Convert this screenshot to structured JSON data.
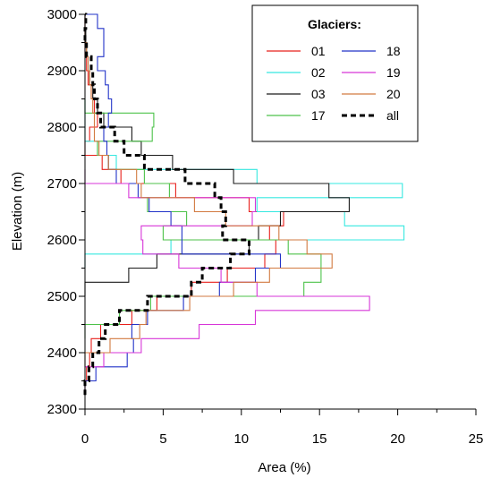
{
  "chart_data": {
    "type": "line",
    "xlabel": "Area (%)",
    "ylabel": "Elevation (m)",
    "xlim": [
      0,
      25
    ],
    "ylim": [
      2300,
      3000
    ],
    "x_ticks": [
      0,
      5,
      10,
      15,
      20,
      25
    ],
    "x_tick_labels": [
      "0",
      "5",
      "10",
      "15",
      "20",
      "25"
    ],
    "y_ticks": [
      2300,
      2400,
      2500,
      2600,
      2700,
      2800,
      2900,
      3000
    ],
    "y_tick_labels": [
      "2300",
      "2400",
      "2500",
      "2600",
      "2700",
      "2800",
      "2900",
      "3000"
    ],
    "grid": false,
    "legend_position": "top-right",
    "legend_title": "Glaciers:",
    "series": [
      {
        "name": "01",
        "color": "#e8201c",
        "dash": "solid",
        "bins": [
          [
            2325,
            2350,
            0.0
          ],
          [
            2350,
            2375,
            0.1
          ],
          [
            2375,
            2400,
            0.3
          ],
          [
            2400,
            2425,
            0.4
          ],
          [
            2425,
            2450,
            1.0
          ],
          [
            2450,
            2475,
            3.0
          ],
          [
            2475,
            2500,
            4.6
          ],
          [
            2500,
            2525,
            6.8
          ],
          [
            2525,
            2550,
            9.1
          ],
          [
            2550,
            2575,
            11.5
          ],
          [
            2575,
            2600,
            12.2
          ],
          [
            2600,
            2625,
            11.8
          ],
          [
            2625,
            2650,
            12.7
          ],
          [
            2650,
            2675,
            10.5
          ],
          [
            2675,
            2700,
            5.8
          ],
          [
            2700,
            2725,
            2.3
          ],
          [
            2725,
            2750,
            1.1
          ],
          [
            2750,
            2775,
            0.0
          ],
          [
            2775,
            2800,
            0.3
          ],
          [
            2800,
            2825,
            0.8
          ],
          [
            2825,
            2850,
            0.6
          ],
          [
            2850,
            2875,
            0.4
          ],
          [
            2875,
            2900,
            0.2
          ],
          [
            2900,
            2925,
            0.1
          ],
          [
            2925,
            2950,
            0.0
          ],
          [
            2950,
            2975,
            0.0
          ],
          [
            2975,
            3000,
            0.0
          ]
        ]
      },
      {
        "name": "02",
        "color": "#36e8e0",
        "dash": "solid",
        "bins": [
          [
            2550,
            2575,
            0.0
          ],
          [
            2575,
            2600,
            5.5
          ],
          [
            2600,
            2625,
            20.4
          ],
          [
            2625,
            2650,
            16.6
          ],
          [
            2650,
            2675,
            11.0
          ],
          [
            2675,
            2700,
            20.3
          ],
          [
            2700,
            2725,
            11.0
          ],
          [
            2725,
            2750,
            2.0
          ],
          [
            2750,
            2775,
            0.8
          ],
          [
            2775,
            2800,
            0.0
          ],
          [
            2800,
            2825,
            0.0
          ],
          [
            2825,
            2850,
            0.0
          ]
        ]
      },
      {
        "name": "03",
        "color": "#1a1a1a",
        "dash": "solid",
        "bins": [
          [
            2500,
            2525,
            0.0
          ],
          [
            2525,
            2550,
            2.8
          ],
          [
            2550,
            2575,
            4.6
          ],
          [
            2575,
            2600,
            10.5
          ],
          [
            2600,
            2625,
            11.1
          ],
          [
            2625,
            2650,
            12.5
          ],
          [
            2650,
            2675,
            16.9
          ],
          [
            2675,
            2700,
            15.6
          ],
          [
            2700,
            2725,
            9.5
          ],
          [
            2725,
            2750,
            5.6
          ],
          [
            2750,
            2775,
            3.6
          ],
          [
            2775,
            2800,
            3.0
          ],
          [
            2800,
            2825,
            1.2
          ],
          [
            2825,
            2850,
            0.8
          ],
          [
            2850,
            2875,
            0.5
          ],
          [
            2875,
            2900,
            0.3
          ],
          [
            2900,
            2925,
            0.2
          ],
          [
            2925,
            2950,
            0.1
          ],
          [
            2950,
            2975,
            0.05
          ],
          [
            2975,
            3000,
            0.0
          ]
        ]
      },
      {
        "name": "17",
        "color": "#4dc24a",
        "dash": "solid",
        "bins": [
          [
            2425,
            2450,
            0.0
          ],
          [
            2450,
            2475,
            2.2
          ],
          [
            2475,
            2500,
            4.2
          ],
          [
            2500,
            2525,
            14.0
          ],
          [
            2525,
            2550,
            15.1
          ],
          [
            2550,
            2575,
            15.1
          ],
          [
            2575,
            2600,
            13.0
          ],
          [
            2600,
            2625,
            5.0
          ],
          [
            2625,
            2650,
            6.5
          ],
          [
            2650,
            2675,
            4.0
          ],
          [
            2675,
            2700,
            5.4
          ],
          [
            2700,
            2725,
            3.8
          ],
          [
            2725,
            2750,
            1.5
          ],
          [
            2750,
            2775,
            0.8
          ],
          [
            2775,
            2800,
            4.3
          ],
          [
            2800,
            2825,
            4.4
          ],
          [
            2825,
            2850,
            0.0
          ]
        ]
      },
      {
        "name": "18",
        "color": "#2233c8",
        "dash": "solid",
        "bins": [
          [
            2325,
            2350,
            0.0
          ],
          [
            2350,
            2375,
            0.7
          ],
          [
            2375,
            2400,
            2.7
          ],
          [
            2400,
            2425,
            3.1
          ],
          [
            2425,
            2450,
            3.0
          ],
          [
            2450,
            2475,
            4.0
          ],
          [
            2475,
            2500,
            6.3
          ],
          [
            2500,
            2525,
            8.6
          ],
          [
            2525,
            2550,
            10.9
          ],
          [
            2550,
            2575,
            12.5
          ],
          [
            2575,
            2600,
            6.2
          ],
          [
            2600,
            2625,
            6.2
          ],
          [
            2625,
            2650,
            5.5
          ],
          [
            2650,
            2675,
            4.1
          ],
          [
            2675,
            2700,
            3.4
          ],
          [
            2700,
            2725,
            2.0
          ],
          [
            2725,
            2750,
            1.5
          ],
          [
            2750,
            2775,
            1.4
          ],
          [
            2775,
            2800,
            1.2
          ],
          [
            2800,
            2825,
            1.5
          ],
          [
            2825,
            2850,
            1.7
          ],
          [
            2850,
            2875,
            1.5
          ],
          [
            2875,
            2900,
            1.3
          ],
          [
            2900,
            2925,
            0.8
          ],
          [
            2925,
            2950,
            1.2
          ],
          [
            2950,
            2975,
            1.2
          ],
          [
            2975,
            3000,
            0.8
          ]
        ]
      },
      {
        "name": "19",
        "color": "#d736d8",
        "dash": "solid",
        "bins": [
          [
            2375,
            2400,
            1.2
          ],
          [
            2400,
            2425,
            3.6
          ],
          [
            2425,
            2450,
            7.3
          ],
          [
            2450,
            2475,
            10.9
          ],
          [
            2475,
            2500,
            18.2
          ],
          [
            2500,
            2525,
            11.0
          ],
          [
            2525,
            2550,
            8.7
          ],
          [
            2550,
            2575,
            6.0
          ],
          [
            2575,
            2600,
            3.7
          ],
          [
            2600,
            2625,
            3.6
          ],
          [
            2625,
            2650,
            10.7
          ],
          [
            2650,
            2675,
            10.9
          ],
          [
            2675,
            2700,
            2.8
          ],
          [
            2700,
            2725,
            0.0
          ]
        ]
      },
      {
        "name": "20",
        "color": "#d27a40",
        "dash": "solid",
        "bins": [
          [
            2375,
            2400,
            0.0
          ],
          [
            2400,
            2425,
            1.6
          ],
          [
            2425,
            2450,
            3.5
          ],
          [
            2450,
            2475,
            3.9
          ],
          [
            2475,
            2500,
            6.7
          ],
          [
            2500,
            2525,
            9.5
          ],
          [
            2525,
            2550,
            11.8
          ],
          [
            2550,
            2575,
            15.8
          ],
          [
            2575,
            2600,
            14.2
          ],
          [
            2600,
            2625,
            12.4
          ],
          [
            2625,
            2650,
            9.0
          ],
          [
            2650,
            2675,
            7.0
          ],
          [
            2675,
            2700,
            3.6
          ],
          [
            2700,
            2725,
            3.3
          ],
          [
            2725,
            2750,
            1.5
          ],
          [
            2750,
            2775,
            0.9
          ],
          [
            2775,
            2800,
            0.6
          ],
          [
            2800,
            2825,
            0.6
          ],
          [
            2825,
            2850,
            0.5
          ],
          [
            2850,
            2875,
            0.4
          ],
          [
            2875,
            2900,
            0.3
          ],
          [
            2900,
            2925,
            0.2
          ],
          [
            2925,
            2950,
            0.1
          ],
          [
            2950,
            2975,
            0.0
          ]
        ]
      },
      {
        "name": "all",
        "color": "#000000",
        "dash": "dashed",
        "bins": [
          [
            2325,
            2350,
            0.0
          ],
          [
            2350,
            2375,
            0.25
          ],
          [
            2375,
            2400,
            0.5
          ],
          [
            2400,
            2425,
            0.9
          ],
          [
            2425,
            2450,
            1.3
          ],
          [
            2450,
            2475,
            2.2
          ],
          [
            2475,
            2500,
            4.0
          ],
          [
            2500,
            2525,
            6.8
          ],
          [
            2525,
            2550,
            7.5
          ],
          [
            2550,
            2575,
            9.3
          ],
          [
            2575,
            2600,
            10.5
          ],
          [
            2600,
            2625,
            8.8
          ],
          [
            2625,
            2650,
            9.0
          ],
          [
            2650,
            2675,
            8.7
          ],
          [
            2675,
            2700,
            8.3
          ],
          [
            2700,
            2725,
            6.4
          ],
          [
            2725,
            2750,
            3.8
          ],
          [
            2750,
            2775,
            2.5
          ],
          [
            2775,
            2800,
            1.9
          ],
          [
            2800,
            2825,
            1.0
          ],
          [
            2825,
            2850,
            0.8
          ],
          [
            2850,
            2875,
            0.6
          ],
          [
            2875,
            2900,
            0.5
          ],
          [
            2900,
            2925,
            0.4
          ],
          [
            2925,
            2950,
            0.1
          ],
          [
            2950,
            2975,
            0.0
          ],
          [
            2975,
            3000,
            0.05
          ]
        ]
      }
    ]
  }
}
